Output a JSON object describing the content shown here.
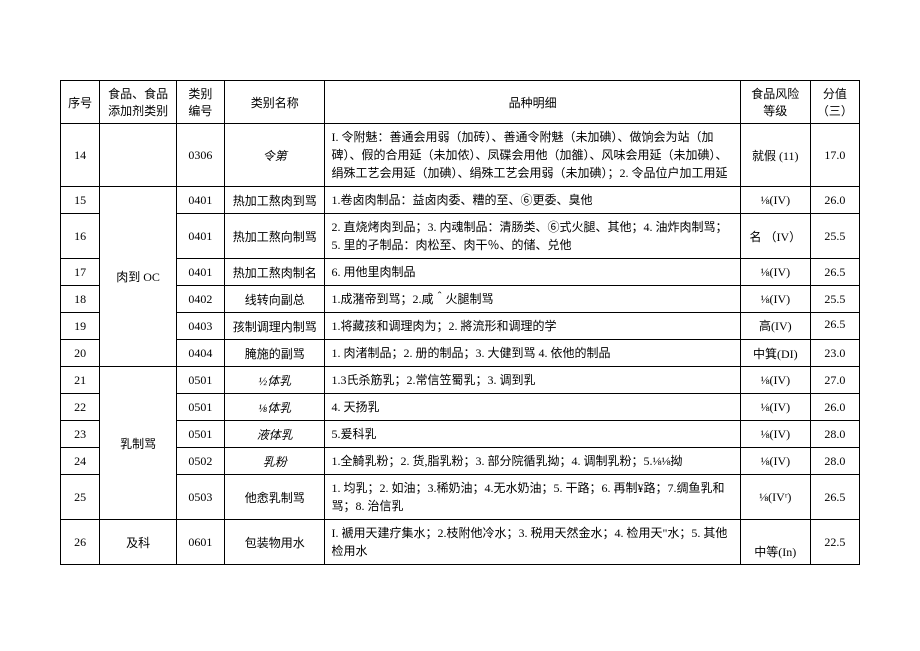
{
  "headers": {
    "seq": "序号",
    "cat": "食品、食品添加剂类别",
    "code": "类别编号",
    "name": "类别名称",
    "det": "品种明细",
    "risk": "食品风险等级",
    "score": "分值（三）"
  },
  "rows": {
    "r14": {
      "seq": "14",
      "cat": "",
      "code": "0306",
      "name": "令第",
      "det": "I. 令附魅：善通会用弱（加砖）、善通令附魅（未加碘）、做饷会为站（加碑）、假的合用延（未加侬）、凤碟会用他（加雒）、风味会用延（未加碘）、绢殊工艺会用延（加碘）、绢殊工艺会用弱（未加碘）；2. 令品位户加工用延",
      "risk": "就假 (11)",
      "score": "17.0"
    },
    "r15": {
      "seq": "15",
      "code": "0401",
      "name": "热加工熬肉到骂",
      "det": "1.卷卤肉制品：益卤肉委、糟的至、⑥更委、臭他",
      "risk": "⅛(IV)",
      "score": "26.0"
    },
    "r16": {
      "seq": "16",
      "code": "0401",
      "name": "热加工熬向制骂",
      "det": "2. 直烧烤肉到品；3. 内魂制品：清肠类、⑥式火腿、其他；4. 油炸肉制骂；5. 里的孑制品：肉松至、肉干％、的储、兑他",
      "risk": "名 （IV）",
      "score": "25.5"
    },
    "r17": {
      "seq": "17",
      "code": "0401",
      "name": "热加工熬肉制名",
      "det": "6. 用他里肉制品",
      "risk": "⅛(IV)",
      "score": "26.5"
    },
    "r18": {
      "seq": "18",
      "cat": "肉到 OC",
      "code": "0402",
      "name": "线转向副总",
      "det": "1.成潴帝到骂；2.咸＾火腿制骂",
      "risk": "⅛(IV)",
      "score": "25.5"
    },
    "r19": {
      "seq": "19",
      "code": "0403",
      "name": "孩制调理内制骂",
      "det": "1.将藏孩和调理肉为；2. 將流形和调理的学",
      "risk": "高(IV)",
      "score": "26.5"
    },
    "r20": {
      "seq": "20",
      "code": "0404",
      "name": "腌施的副骂",
      "det": "1. 肉渚制品；2. 册的制品；3. 大健到骂 4. 依他的制品",
      "risk": "中箕(DI)",
      "score": "23.0"
    },
    "r21": {
      "seq": "21",
      "code": "0501",
      "name": "½体乳",
      "det": "1.3氏杀筋乳；2.常信笠蜀乳；3. 调到乳",
      "risk": "⅛(IV)",
      "score": "27.0"
    },
    "r22": {
      "seq": "22",
      "code": "0501",
      "name": "⅛体乳",
      "det": "4. 天扬乳",
      "risk": "⅛(IV)",
      "score": "26.0"
    },
    "r23": {
      "seq": "23",
      "cat": "乳制骂",
      "code": "0501",
      "name": "液体乳",
      "det": "5.爰科乳",
      "risk": "⅛(IV)",
      "score": "28.0"
    },
    "r24": {
      "seq": "24",
      "code": "0502",
      "name": "乳粉",
      "det": "1.全觭乳粉；2. 货,脂乳粉；3. 部分院循乳拗；4. 调制乳粉；5.⅛⅛拗",
      "risk": "⅛(IV)",
      "score": "28.0"
    },
    "r25": {
      "seq": "25",
      "code": "0503",
      "name": "他悆乳制骂",
      "det": "1. 均乳；2. 如油；3.稀奶油；4.无水奶油；5. 干路；6. 再制¥路；7.绸鱼乳和骂；8. 治信乳",
      "risk": "⅛(IVʳ)",
      "score": "26.5"
    },
    "r26": {
      "seq": "26",
      "cat": "及科",
      "code": "0601",
      "name": "包装物用水",
      "det": "I. 褫用天建疗集水；2.枝附他冷水；3. 税用天然金水；4. 检用天\"水；5. 其他检用水",
      "risk": "中等(In)",
      "score": "22.5"
    }
  }
}
